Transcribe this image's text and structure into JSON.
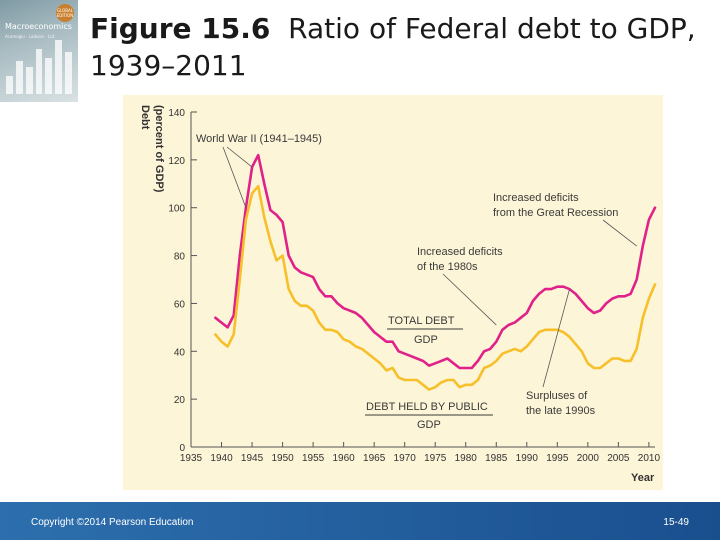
{
  "slide": {
    "title_number": "Figure 15.6",
    "title_text": "Ratio of Federal debt to GDP, 1939–2011"
  },
  "cover": {
    "badge": "GLOBAL EDITION",
    "title": "Macroeconomics",
    "authors": "Acemoglu · Laibson · List"
  },
  "footer": {
    "copyright": "Copyright ©2014 Pearson Education",
    "page": "15-49"
  },
  "colors": {
    "total_debt": "#e0218a",
    "public_debt": "#f7c02a",
    "panel": "#fdf5d7",
    "annotation": "#3a3a3a"
  },
  "chart_data": {
    "type": "line",
    "ylabel": "Debt (percent of GDP)",
    "xlabel": "Year",
    "xlim": [
      1935,
      2011
    ],
    "ylim": [
      0,
      140
    ],
    "x_ticks": [
      1935,
      1940,
      1945,
      1950,
      1955,
      1960,
      1965,
      1970,
      1975,
      1980,
      1985,
      1990,
      1995,
      2000,
      2005,
      2010
    ],
    "y_ticks": [
      0,
      20,
      40,
      60,
      80,
      100,
      120,
      140
    ],
    "grid": false,
    "series": [
      {
        "name": "TOTAL DEBT / GDP",
        "x": [
          1939,
          1940,
          1941,
          1942,
          1943,
          1944,
          1945,
          1946,
          1947,
          1948,
          1949,
          1950,
          1951,
          1952,
          1953,
          1954,
          1955,
          1956,
          1957,
          1958,
          1959,
          1960,
          1961,
          1962,
          1963,
          1964,
          1965,
          1966,
          1967,
          1968,
          1969,
          1970,
          1971,
          1972,
          1973,
          1974,
          1975,
          1976,
          1977,
          1978,
          1979,
          1980,
          1981,
          1982,
          1983,
          1984,
          1985,
          1986,
          1987,
          1988,
          1989,
          1990,
          1991,
          1992,
          1993,
          1994,
          1995,
          1996,
          1997,
          1998,
          1999,
          2000,
          2001,
          2002,
          2003,
          2004,
          2005,
          2006,
          2007,
          2008,
          2009,
          2010,
          2011
        ],
        "values": [
          54,
          52,
          50,
          55,
          80,
          100,
          117,
          122,
          110,
          99,
          97,
          94,
          80,
          75,
          73,
          72,
          71,
          66,
          63,
          63,
          60,
          58,
          57,
          56,
          54,
          51,
          48,
          46,
          44,
          44,
          40,
          39,
          38,
          37,
          36,
          34,
          35,
          36,
          37,
          35,
          33,
          33,
          33,
          36,
          40,
          41,
          44,
          49,
          51,
          52,
          54,
          56,
          61,
          64,
          66,
          66,
          67,
          67,
          66,
          64,
          61,
          58,
          56,
          57,
          60,
          62,
          63,
          63,
          64,
          70,
          84,
          95,
          100
        ]
      },
      {
        "name": "DEBT HELD BY PUBLIC / GDP",
        "x": [
          1939,
          1940,
          1941,
          1942,
          1943,
          1944,
          1945,
          1946,
          1947,
          1948,
          1949,
          1950,
          1951,
          1952,
          1953,
          1954,
          1955,
          1956,
          1957,
          1958,
          1959,
          1960,
          1961,
          1962,
          1963,
          1964,
          1965,
          1966,
          1967,
          1968,
          1969,
          1970,
          1971,
          1972,
          1973,
          1974,
          1975,
          1976,
          1977,
          1978,
          1979,
          1980,
          1981,
          1982,
          1983,
          1984,
          1985,
          1986,
          1987,
          1988,
          1989,
          1990,
          1991,
          1992,
          1993,
          1994,
          1995,
          1996,
          1997,
          1998,
          1999,
          2000,
          2001,
          2002,
          2003,
          2004,
          2005,
          2006,
          2007,
          2008,
          2009,
          2010,
          2011
        ],
        "values": [
          47,
          44,
          42,
          47,
          70,
          95,
          106,
          109,
          96,
          86,
          78,
          80,
          66,
          61,
          59,
          59,
          57,
          52,
          49,
          49,
          48,
          45,
          44,
          42,
          41,
          39,
          37,
          35,
          32,
          33,
          29,
          28,
          28,
          28,
          26,
          24,
          25,
          27,
          28,
          28,
          25,
          26,
          26,
          28,
          33,
          34,
          36,
          39,
          40,
          41,
          40,
          42,
          45,
          48,
          49,
          49,
          49,
          48,
          46,
          43,
          40,
          35,
          33,
          33,
          35,
          37,
          37,
          36,
          36,
          41,
          54,
          62,
          68
        ]
      }
    ],
    "annotations": {
      "ww2": "World War II (1941–1945)",
      "great_recession_1": "Increased deficits",
      "great_recession_2": "from the Great Recession",
      "eighties_1": "Increased deficits",
      "eighties_2": "of the 1980s",
      "surpluses_1": "Surpluses of",
      "surpluses_2": "the late 1990s",
      "total_label_num": "TOTAL DEBT",
      "total_label_den": "GDP",
      "public_label_num": "DEBT HELD BY PUBLIC",
      "public_label_den": "GDP"
    }
  }
}
